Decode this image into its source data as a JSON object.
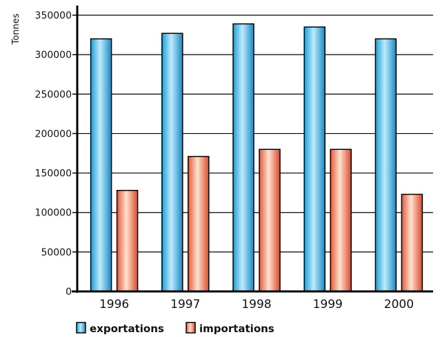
{
  "chart_data": {
    "type": "bar",
    "categories": [
      "1996",
      "1997",
      "1998",
      "1999",
      "2000"
    ],
    "series": [
      {
        "name": "exportations",
        "values": [
          320000,
          327000,
          339000,
          335000,
          320000
        ],
        "color": "#3fb4e2"
      },
      {
        "name": "importations",
        "values": [
          128000,
          171000,
          180000,
          180000,
          123000
        ],
        "color": "#f08060"
      }
    ],
    "ylabel": "Tonnes",
    "xlabel": "",
    "ylim": [
      0,
      350000
    ],
    "yticks": [
      "0",
      "50000",
      "100000",
      "150000",
      "200000",
      "250000",
      "300000",
      "350000"
    ],
    "grid": true,
    "legend_position": "bottom-left"
  }
}
